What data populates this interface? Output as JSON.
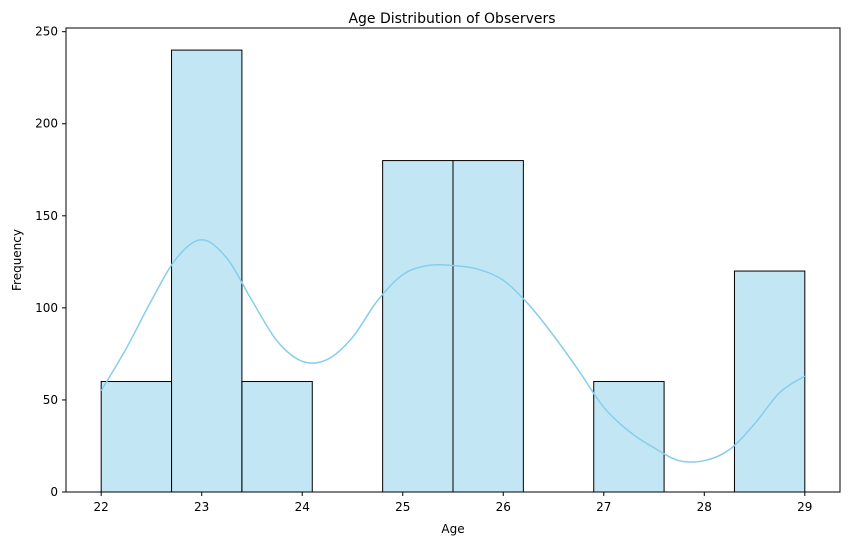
{
  "chart_data": {
    "type": "bar",
    "title": "Age Distribution of Observers",
    "xlabel": "Age",
    "ylabel": "Frequency",
    "bin_edges": [
      22.0,
      22.7,
      23.4,
      24.1,
      24.8,
      25.5,
      26.2,
      26.9,
      27.6,
      28.3,
      29.0
    ],
    "values": [
      60,
      240,
      60,
      0,
      180,
      180,
      0,
      60,
      0,
      120
    ],
    "xticks": [
      22,
      23,
      24,
      25,
      26,
      27,
      28,
      29
    ],
    "yticks": [
      0,
      50,
      100,
      150,
      200,
      250
    ],
    "xlim": [
      21.65,
      29.35
    ],
    "ylim": [
      0,
      252
    ],
    "grid": false,
    "bar_color": "#87CEEB",
    "bar_opacity": 0.5,
    "edge_color": "#000000",
    "kde": {
      "color": "#87CEEB",
      "points": [
        [
          22.0,
          55
        ],
        [
          22.25,
          78
        ],
        [
          22.5,
          104
        ],
        [
          22.75,
          127
        ],
        [
          23.0,
          137
        ],
        [
          23.25,
          127
        ],
        [
          23.5,
          104
        ],
        [
          23.75,
          82
        ],
        [
          24.0,
          71
        ],
        [
          24.25,
          72
        ],
        [
          24.5,
          84
        ],
        [
          24.75,
          104
        ],
        [
          25.0,
          118
        ],
        [
          25.25,
          123
        ],
        [
          25.5,
          123
        ],
        [
          25.75,
          121
        ],
        [
          26.0,
          115
        ],
        [
          26.25,
          102
        ],
        [
          26.5,
          85
        ],
        [
          26.75,
          66
        ],
        [
          27.0,
          46
        ],
        [
          27.25,
          33
        ],
        [
          27.5,
          24
        ],
        [
          27.75,
          17
        ],
        [
          28.0,
          17
        ],
        [
          28.25,
          23
        ],
        [
          28.5,
          37
        ],
        [
          28.75,
          54
        ],
        [
          29.0,
          63
        ]
      ]
    }
  }
}
